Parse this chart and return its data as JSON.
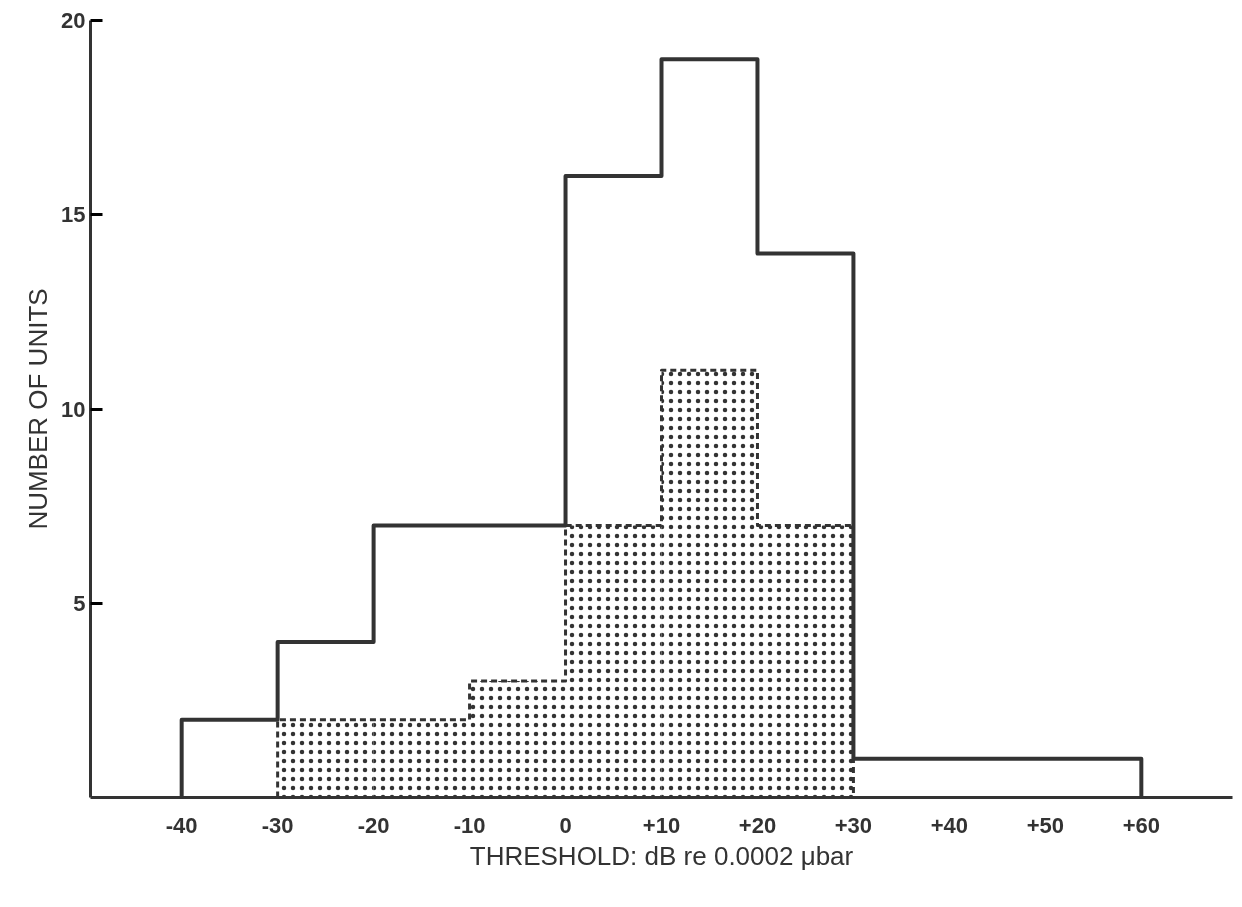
{
  "chart_data": {
    "type": "histogram",
    "xlabel": "THRESHOLD: dB re 0.0002 μbar",
    "ylabel": "NUMBER OF UNITS",
    "bins": [
      -40,
      -30,
      -20,
      -10,
      0,
      10,
      20,
      30,
      40,
      50,
      60
    ],
    "series": [
      {
        "color": "#333333",
        "line_style": "solid",
        "values": [
          2,
          4,
          7,
          7,
          16,
          19,
          14,
          1,
          1,
          1
        ]
      },
      {
        "color": "#333333",
        "line_style": "dashed",
        "values": [
          null,
          2,
          2,
          3,
          7,
          11,
          7,
          null,
          null,
          null
        ]
      }
    ],
    "xlim": [
      -49.5,
      69.5
    ],
    "ylim": [
      0,
      20
    ],
    "xticks": [
      {
        "value": -40,
        "label": "-40"
      },
      {
        "value": -30,
        "label": "-30"
      },
      {
        "value": -20,
        "label": "-20"
      },
      {
        "value": -10,
        "label": "-10"
      },
      0,
      {
        "value": 10,
        "label": "+10"
      },
      {
        "value": 20,
        "label": "+20"
      },
      {
        "value": 30,
        "label": "+30"
      },
      {
        "value": 40,
        "label": "+40"
      },
      {
        "value": 50,
        "label": "+50"
      },
      {
        "value": 60,
        "label": "+60"
      }
    ],
    "yticks": [
      5,
      10,
      15,
      20
    ],
    "grid": false
  }
}
